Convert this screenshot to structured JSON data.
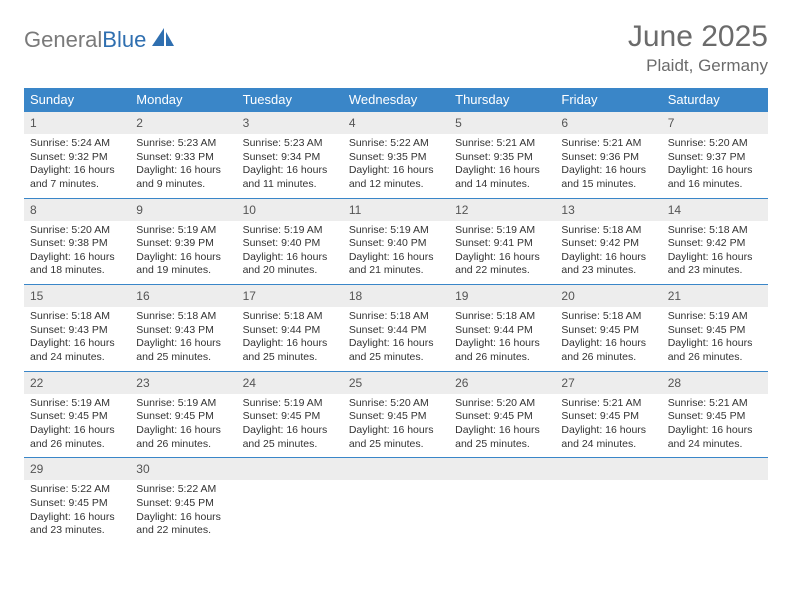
{
  "colors": {
    "header_bg": "#3a86c8",
    "header_text": "#ffffff",
    "daynum_bg": "#ededed",
    "daynum_border": "#3a86c8",
    "body_text": "#333333",
    "title_text": "#6b6b6b",
    "logo_gray": "#7a7a7a",
    "logo_blue": "#2f6fb0"
  },
  "logo": {
    "word1": "General",
    "word2": "Blue"
  },
  "title": {
    "month": "June 2025",
    "location": "Plaidt, Germany"
  },
  "weekdays": [
    "Sunday",
    "Monday",
    "Tuesday",
    "Wednesday",
    "Thursday",
    "Friday",
    "Saturday"
  ],
  "days": [
    {
      "n": "1",
      "sr": "5:24 AM",
      "ss": "9:32 PM",
      "dl": "16 hours and 7 minutes."
    },
    {
      "n": "2",
      "sr": "5:23 AM",
      "ss": "9:33 PM",
      "dl": "16 hours and 9 minutes."
    },
    {
      "n": "3",
      "sr": "5:23 AM",
      "ss": "9:34 PM",
      "dl": "16 hours and 11 minutes."
    },
    {
      "n": "4",
      "sr": "5:22 AM",
      "ss": "9:35 PM",
      "dl": "16 hours and 12 minutes."
    },
    {
      "n": "5",
      "sr": "5:21 AM",
      "ss": "9:35 PM",
      "dl": "16 hours and 14 minutes."
    },
    {
      "n": "6",
      "sr": "5:21 AM",
      "ss": "9:36 PM",
      "dl": "16 hours and 15 minutes."
    },
    {
      "n": "7",
      "sr": "5:20 AM",
      "ss": "9:37 PM",
      "dl": "16 hours and 16 minutes."
    },
    {
      "n": "8",
      "sr": "5:20 AM",
      "ss": "9:38 PM",
      "dl": "16 hours and 18 minutes."
    },
    {
      "n": "9",
      "sr": "5:19 AM",
      "ss": "9:39 PM",
      "dl": "16 hours and 19 minutes."
    },
    {
      "n": "10",
      "sr": "5:19 AM",
      "ss": "9:40 PM",
      "dl": "16 hours and 20 minutes."
    },
    {
      "n": "11",
      "sr": "5:19 AM",
      "ss": "9:40 PM",
      "dl": "16 hours and 21 minutes."
    },
    {
      "n": "12",
      "sr": "5:19 AM",
      "ss": "9:41 PM",
      "dl": "16 hours and 22 minutes."
    },
    {
      "n": "13",
      "sr": "5:18 AM",
      "ss": "9:42 PM",
      "dl": "16 hours and 23 minutes."
    },
    {
      "n": "14",
      "sr": "5:18 AM",
      "ss": "9:42 PM",
      "dl": "16 hours and 23 minutes."
    },
    {
      "n": "15",
      "sr": "5:18 AM",
      "ss": "9:43 PM",
      "dl": "16 hours and 24 minutes."
    },
    {
      "n": "16",
      "sr": "5:18 AM",
      "ss": "9:43 PM",
      "dl": "16 hours and 25 minutes."
    },
    {
      "n": "17",
      "sr": "5:18 AM",
      "ss": "9:44 PM",
      "dl": "16 hours and 25 minutes."
    },
    {
      "n": "18",
      "sr": "5:18 AM",
      "ss": "9:44 PM",
      "dl": "16 hours and 25 minutes."
    },
    {
      "n": "19",
      "sr": "5:18 AM",
      "ss": "9:44 PM",
      "dl": "16 hours and 26 minutes."
    },
    {
      "n": "20",
      "sr": "5:18 AM",
      "ss": "9:45 PM",
      "dl": "16 hours and 26 minutes."
    },
    {
      "n": "21",
      "sr": "5:19 AM",
      "ss": "9:45 PM",
      "dl": "16 hours and 26 minutes."
    },
    {
      "n": "22",
      "sr": "5:19 AM",
      "ss": "9:45 PM",
      "dl": "16 hours and 26 minutes."
    },
    {
      "n": "23",
      "sr": "5:19 AM",
      "ss": "9:45 PM",
      "dl": "16 hours and 26 minutes."
    },
    {
      "n": "24",
      "sr": "5:19 AM",
      "ss": "9:45 PM",
      "dl": "16 hours and 25 minutes."
    },
    {
      "n": "25",
      "sr": "5:20 AM",
      "ss": "9:45 PM",
      "dl": "16 hours and 25 minutes."
    },
    {
      "n": "26",
      "sr": "5:20 AM",
      "ss": "9:45 PM",
      "dl": "16 hours and 25 minutes."
    },
    {
      "n": "27",
      "sr": "5:21 AM",
      "ss": "9:45 PM",
      "dl": "16 hours and 24 minutes."
    },
    {
      "n": "28",
      "sr": "5:21 AM",
      "ss": "9:45 PM",
      "dl": "16 hours and 24 minutes."
    },
    {
      "n": "29",
      "sr": "5:22 AM",
      "ss": "9:45 PM",
      "dl": "16 hours and 23 minutes."
    },
    {
      "n": "30",
      "sr": "5:22 AM",
      "ss": "9:45 PM",
      "dl": "16 hours and 22 minutes."
    }
  ],
  "labels": {
    "sunrise": "Sunrise:",
    "sunset": "Sunset:",
    "daylight": "Daylight:"
  },
  "layout": {
    "first_weekday_index": 0,
    "total_cells": 35
  }
}
